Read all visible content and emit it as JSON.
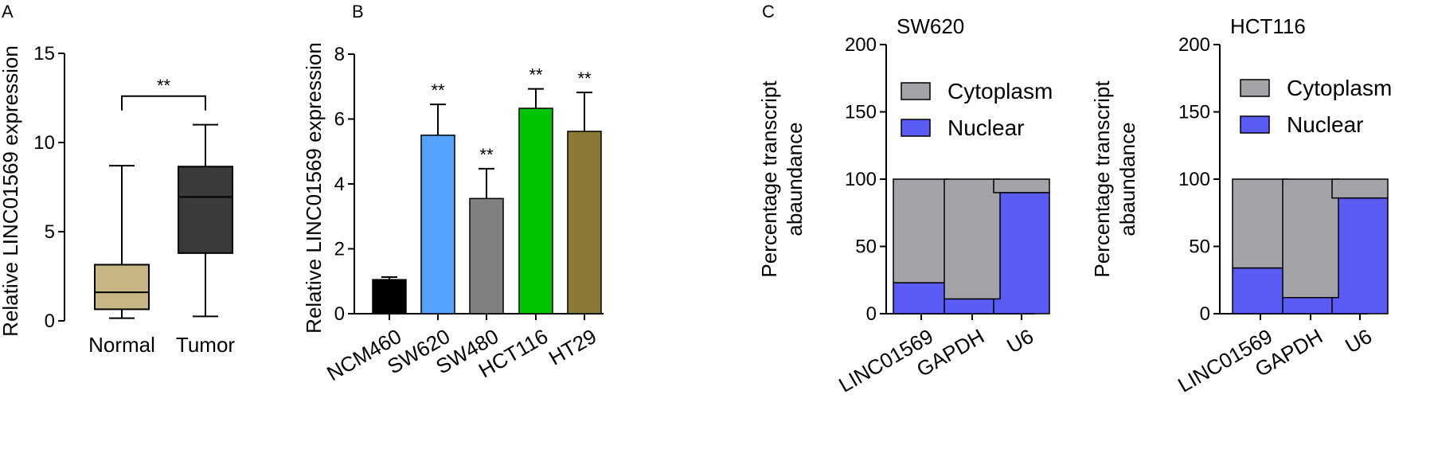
{
  "panels": {
    "A": {
      "letter": "A",
      "chart_data": {
        "type": "box",
        "ylabel": "Relative LINC01569 expression",
        "ylim": [
          0,
          15
        ],
        "yticks": [
          0,
          5,
          10,
          15
        ],
        "ytick_labels": [
          "0",
          "5",
          "10",
          "15"
        ],
        "categories": [
          "Normal",
          "Tumor"
        ],
        "boxes": [
          {
            "name": "Normal",
            "min": 0.15,
            "q1": 0.65,
            "median": 1.6,
            "q3": 3.15,
            "max": 8.7,
            "color": "#c6b683"
          },
          {
            "name": "Tumor",
            "min": 0.25,
            "q1": 3.8,
            "median": 6.95,
            "q3": 8.65,
            "max": 11.0,
            "color": "#3a3a3a"
          }
        ],
        "annotation": {
          "text": "**",
          "between": [
            "Normal",
            "Tumor"
          ],
          "y": 12.6
        }
      }
    },
    "B": {
      "letter": "B",
      "chart_data": {
        "type": "bar",
        "ylabel": "Relative LINC01569 expression",
        "ylim": [
          0,
          8
        ],
        "yticks": [
          0,
          2,
          4,
          6,
          8
        ],
        "ytick_labels": [
          "0",
          "2",
          "4",
          "6",
          "8"
        ],
        "categories": [
          "NCM460",
          "SW620",
          "SW480",
          "HCT116",
          "HT29"
        ],
        "values": [
          1.05,
          5.5,
          3.55,
          6.33,
          5.62
        ],
        "errors": [
          0.08,
          0.95,
          0.92,
          0.6,
          1.2
        ],
        "colors": [
          "#000000",
          "#55a3ff",
          "#808080",
          "#00c400",
          "#8a7a35"
        ],
        "significance": [
          "",
          "**",
          "**",
          "**",
          "**"
        ]
      }
    },
    "C": {
      "letter": "C",
      "charts": [
        {
          "chart_data": {
            "type": "stacked_bar",
            "title": "SW620",
            "ylabel_lines": [
              "Percentage transcript",
              "abaundance"
            ],
            "ylim": [
              0,
              200
            ],
            "yticks": [
              0,
              50,
              100,
              150,
              200
            ],
            "ytick_labels": [
              "0",
              "50",
              "100",
              "150",
              "200"
            ],
            "categories": [
              "LINC01569",
              "GAPDH",
              "U6"
            ],
            "series": [
              {
                "name": "Nuclear",
                "color": "#5b5bf5",
                "values": [
                  23,
                  11,
                  90
                ]
              },
              {
                "name": "Cytoplasm",
                "color": "#a3a3a8",
                "values": [
                  77,
                  89,
                  10
                ]
              }
            ],
            "legend": [
              "Cytoplasm",
              "Nuclear"
            ]
          }
        },
        {
          "chart_data": {
            "type": "stacked_bar",
            "title": "HCT116",
            "ylabel_lines": [
              "Percentage transcript",
              "abaundance"
            ],
            "ylim": [
              0,
              200
            ],
            "yticks": [
              0,
              50,
              100,
              150,
              200
            ],
            "ytick_labels": [
              "0",
              "50",
              "100",
              "150",
              "200"
            ],
            "categories": [
              "LINC01569",
              "GAPDH",
              "U6"
            ],
            "series": [
              {
                "name": "Nuclear",
                "color": "#5b5bf5",
                "values": [
                  34,
                  12,
                  86
                ]
              },
              {
                "name": "Cytoplasm",
                "color": "#a3a3a8",
                "values": [
                  66,
                  88,
                  14
                ]
              }
            ],
            "legend": [
              "Cytoplasm",
              "Nuclear"
            ]
          }
        }
      ]
    }
  }
}
